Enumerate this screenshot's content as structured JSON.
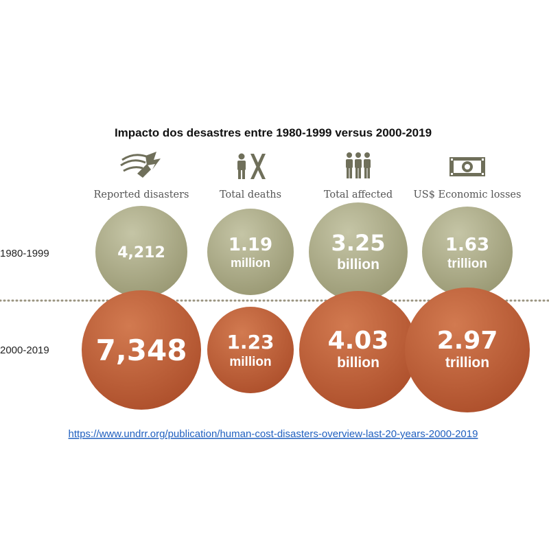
{
  "chart_data": {
    "type": "bubble",
    "title": "Impacto dos desastres entre 1980-1999 versus 2000-2019",
    "categories": [
      {
        "label": "Reported disasters",
        "icon": "storm-icon"
      },
      {
        "label": "Total deaths",
        "icon": "deaths-icon"
      },
      {
        "label": "Total affected",
        "icon": "people-icon"
      },
      {
        "label": "US$ Economic losses",
        "icon": "money-icon"
      }
    ],
    "series": [
      {
        "name": "1980-1999",
        "color": "#a5a581",
        "values": [
          4212,
          1.19,
          3.25,
          1.63
        ],
        "display": [
          {
            "number": "4,212",
            "unit": ""
          },
          {
            "number": "1.19",
            "unit": "million"
          },
          {
            "number": "3.25",
            "unit": "billion"
          },
          {
            "number": "1.63",
            "unit": "trillion"
          }
        ]
      },
      {
        "name": "2000-2019",
        "color": "#b85a33",
        "values": [
          7348,
          1.23,
          4.03,
          2.97
        ],
        "display": [
          {
            "number": "7,348",
            "unit": ""
          },
          {
            "number": "1.23",
            "unit": "million"
          },
          {
            "number": "4.03",
            "unit": "billion"
          },
          {
            "number": "2.97",
            "unit": "trillion"
          }
        ]
      }
    ]
  },
  "source_link": "https://www.undrr.org/publication/human-cost-disasters-overview-last-20-years-2000-2019",
  "colors": {
    "olive": "#a5a581",
    "rust": "#b85a33",
    "divider": "#9a9480",
    "icon": "#6f6f5a"
  }
}
